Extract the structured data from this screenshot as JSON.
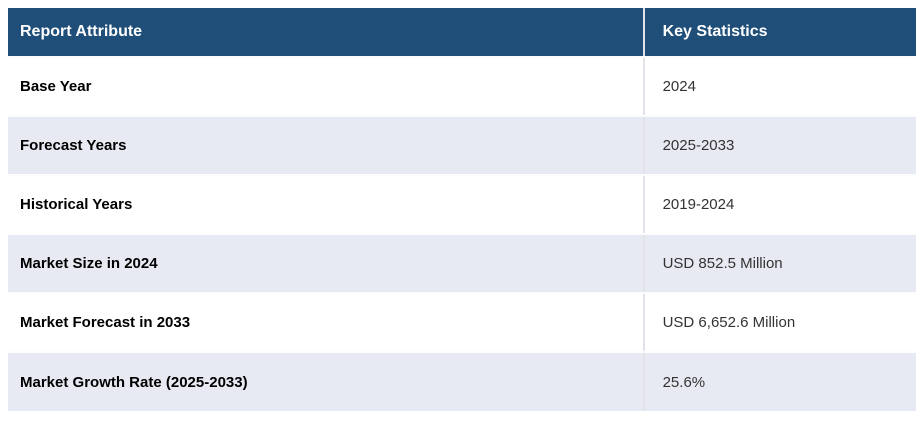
{
  "table": {
    "columns": [
      {
        "label": "Report Attribute"
      },
      {
        "label": "Key Statistics"
      }
    ],
    "rows": [
      {
        "attribute": "Base Year",
        "value": "2024"
      },
      {
        "attribute": "Forecast Years",
        "value": "2025-2033"
      },
      {
        "attribute": "Historical Years",
        "value": "2019-2024"
      },
      {
        "attribute": "Market Size in 2024",
        "value": "USD 852.5 Million"
      },
      {
        "attribute": "Market Forecast in 2033",
        "value": "USD 6,652.6 Million"
      },
      {
        "attribute": "Market Growth Rate (2025-2033)",
        "value": "25.6%"
      }
    ]
  },
  "colors": {
    "header_bg": "#1F4E79",
    "header_text": "#FFFFFF",
    "row_bg": "#FFFFFF",
    "row_alt_bg": "#E8EAF3",
    "label_text": "#000000",
    "value_text": "#333333",
    "divider": "#E2E3E8",
    "row_separator": "#FCFCFD"
  }
}
